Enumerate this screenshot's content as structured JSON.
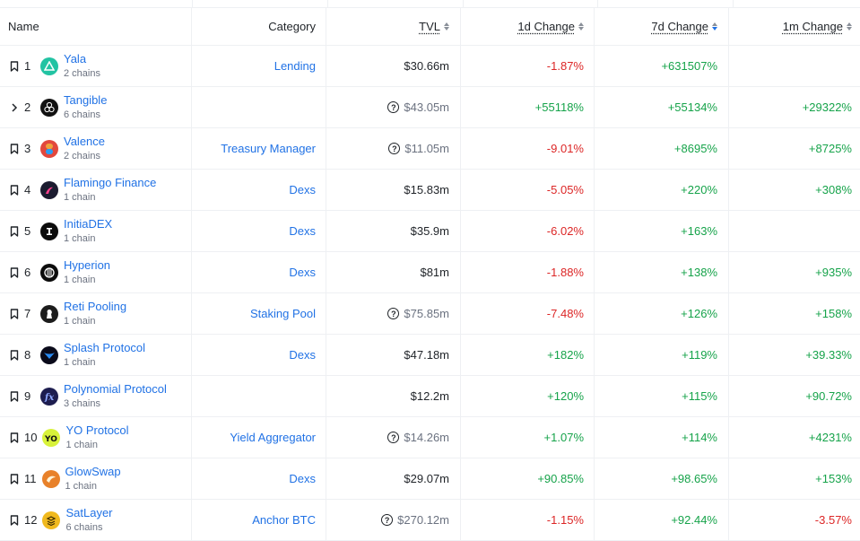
{
  "header": {
    "name": "Name",
    "category": "Category",
    "tvl": "TVL",
    "d1": "1d Change",
    "d7": "7d Change",
    "m1": "1m Change"
  },
  "rows": [
    {
      "rank": "1",
      "name": "Yala",
      "chains": "2 chains",
      "category": "Lending",
      "tvl": "$30.66m",
      "tvl_estimated": false,
      "d1": "-1.87%",
      "d1_sign": "neg",
      "d7": "+631507%",
      "d7_sign": "pos",
      "m1": "",
      "m1_sign": "pos",
      "lead": "bookmark",
      "logo_color": "#22c3a3",
      "logo_icon": "yala-logo"
    },
    {
      "rank": "2",
      "name": "Tangible",
      "chains": "6 chains",
      "category": "",
      "tvl": "$43.05m",
      "tvl_estimated": true,
      "d1": "+55118%",
      "d1_sign": "pos",
      "d7": "+55134%",
      "d7_sign": "pos",
      "m1": "+29322%",
      "m1_sign": "pos",
      "lead": "chevron",
      "logo_color": "#111111",
      "logo_icon": "tangible-logo"
    },
    {
      "rank": "3",
      "name": "Valence",
      "chains": "2 chains",
      "category": "Treasury Manager",
      "tvl": "$11.05m",
      "tvl_estimated": true,
      "d1": "-9.01%",
      "d1_sign": "neg",
      "d7": "+8695%",
      "d7_sign": "pos",
      "m1": "+8725%",
      "m1_sign": "pos",
      "lead": "bookmark",
      "logo_color": "#e2483d",
      "logo_icon": "valence-logo"
    },
    {
      "rank": "4",
      "name": "Flamingo Finance",
      "chains": "1 chain",
      "category": "Dexs",
      "tvl": "$15.83m",
      "tvl_estimated": false,
      "d1": "-5.05%",
      "d1_sign": "neg",
      "d7": "+220%",
      "d7_sign": "pos",
      "m1": "+308%",
      "m1_sign": "pos",
      "lead": "bookmark",
      "logo_color": "#1b1b2f",
      "logo_icon": "flamingo-logo"
    },
    {
      "rank": "5",
      "name": "InitiaDEX",
      "chains": "1 chain",
      "category": "Dexs",
      "tvl": "$35.9m",
      "tvl_estimated": false,
      "d1": "-6.02%",
      "d1_sign": "neg",
      "d7": "+163%",
      "d7_sign": "pos",
      "m1": "",
      "m1_sign": "pos",
      "lead": "bookmark",
      "logo_color": "#0b0b0b",
      "logo_icon": "initia-logo"
    },
    {
      "rank": "6",
      "name": "Hyperion",
      "chains": "1 chain",
      "category": "Dexs",
      "tvl": "$81m",
      "tvl_estimated": false,
      "d1": "-1.88%",
      "d1_sign": "neg",
      "d7": "+138%",
      "d7_sign": "pos",
      "m1": "+935%",
      "m1_sign": "pos",
      "lead": "bookmark",
      "logo_color": "#0b0b0b",
      "logo_icon": "hyperion-logo"
    },
    {
      "rank": "7",
      "name": "Reti Pooling",
      "chains": "1 chain",
      "category": "Staking Pool",
      "tvl": "$75.85m",
      "tvl_estimated": true,
      "d1": "-7.48%",
      "d1_sign": "neg",
      "d7": "+126%",
      "d7_sign": "pos",
      "m1": "+158%",
      "m1_sign": "pos",
      "lead": "bookmark",
      "logo_color": "#1c1c1c",
      "logo_icon": "reti-logo"
    },
    {
      "rank": "8",
      "name": "Splash Protocol",
      "chains": "1 chain",
      "category": "Dexs",
      "tvl": "$47.18m",
      "tvl_estimated": false,
      "d1": "+182%",
      "d1_sign": "pos",
      "d7": "+119%",
      "d7_sign": "pos",
      "m1": "+39.33%",
      "m1_sign": "pos",
      "lead": "bookmark",
      "logo_color": "#0a0a1a",
      "logo_icon": "splash-logo"
    },
    {
      "rank": "9",
      "name": "Polynomial Protocol",
      "chains": "3 chains",
      "category": "",
      "tvl": "$12.2m",
      "tvl_estimated": false,
      "d1": "+120%",
      "d1_sign": "pos",
      "d7": "+115%",
      "d7_sign": "pos",
      "m1": "+90.72%",
      "m1_sign": "pos",
      "lead": "bookmark",
      "logo_color": "#1d1d4f",
      "logo_icon": "polynomial-logo"
    },
    {
      "rank": "10",
      "name": "YO Protocol",
      "chains": "1 chain",
      "category": "Yield Aggregator",
      "tvl": "$14.26m",
      "tvl_estimated": true,
      "d1": "+1.07%",
      "d1_sign": "pos",
      "d7": "+114%",
      "d7_sign": "pos",
      "m1": "+4231%",
      "m1_sign": "pos",
      "lead": "bookmark",
      "logo_color": "#d8f23a",
      "logo_icon": "yo-logo"
    },
    {
      "rank": "11",
      "name": "GlowSwap",
      "chains": "1 chain",
      "category": "Dexs",
      "tvl": "$29.07m",
      "tvl_estimated": false,
      "d1": "+90.85%",
      "d1_sign": "pos",
      "d7": "+98.65%",
      "d7_sign": "pos",
      "m1": "+153%",
      "m1_sign": "pos",
      "lead": "bookmark",
      "logo_color": "#e8812a",
      "logo_icon": "glowswap-logo"
    },
    {
      "rank": "12",
      "name": "SatLayer",
      "chains": "6 chains",
      "category": "Anchor BTC",
      "tvl": "$270.12m",
      "tvl_estimated": true,
      "d1": "-1.15%",
      "d1_sign": "neg",
      "d7": "+92.44%",
      "d7_sign": "pos",
      "m1": "-3.57%",
      "m1_sign": "neg",
      "lead": "bookmark",
      "logo_color": "#f0b91e",
      "logo_icon": "satlayer-logo"
    }
  ]
}
